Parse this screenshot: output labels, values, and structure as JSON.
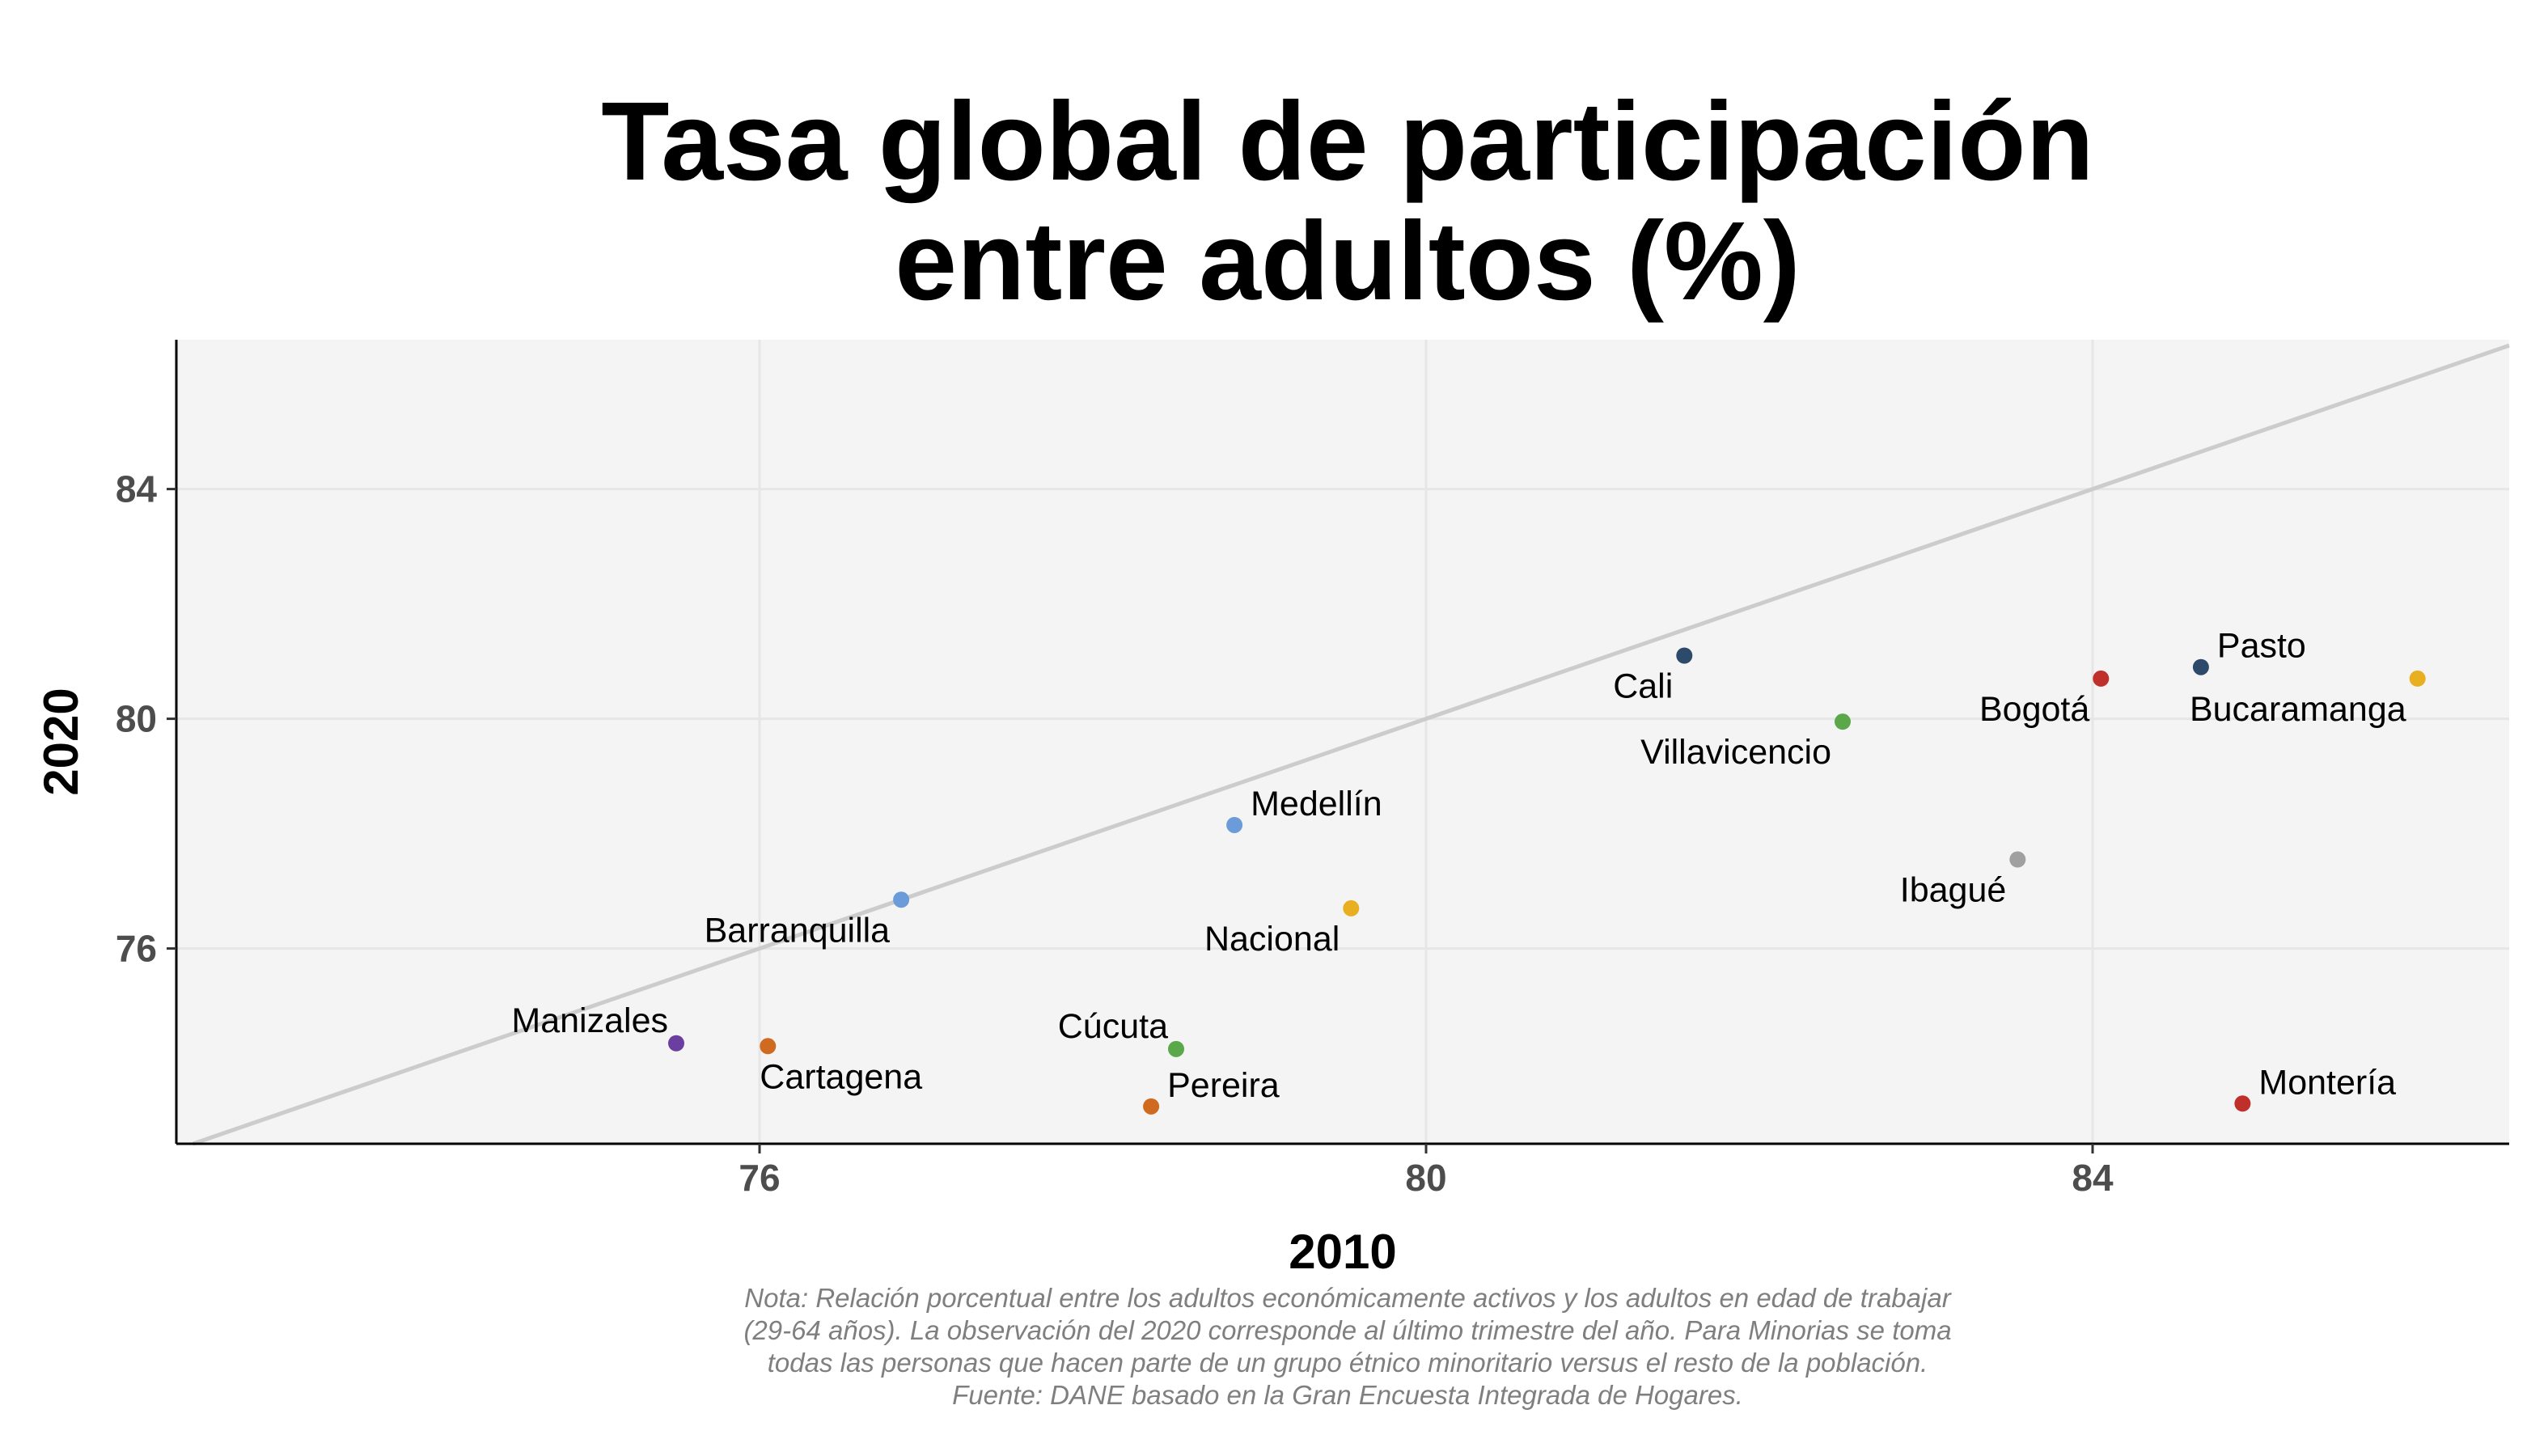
{
  "chart_data": {
    "type": "scatter",
    "title": [
      "Tasa global de participación",
      "entre adultos (%)"
    ],
    "xlabel": "2010",
    "ylabel": "2020",
    "xlim": [
      72.5,
      86.5
    ],
    "ylim": [
      72.6,
      86.6
    ],
    "xticks": [
      76,
      80,
      84
    ],
    "yticks": [
      76,
      80,
      84
    ],
    "grid": true,
    "reference_line": "y = x",
    "points": [
      {
        "label": "Pasto",
        "x": 84.65,
        "y": 80.9,
        "color": "#2e4a6b",
        "label_pos": "top-right"
      },
      {
        "label": "Bucaramanga",
        "x": 85.95,
        "y": 80.7,
        "color": "#e8b020",
        "label_pos": "bottom-left"
      },
      {
        "label": "Bogotá",
        "x": 84.05,
        "y": 80.7,
        "color": "#c0302a",
        "label_pos": "bottom-left"
      },
      {
        "label": "Cali",
        "x": 81.55,
        "y": 81.1,
        "color": "#2e4a6b",
        "label_pos": "bottom-left"
      },
      {
        "label": "Villavicencio",
        "x": 82.5,
        "y": 79.95,
        "color": "#5aa84a",
        "label_pos": "bottom-left"
      },
      {
        "label": "Ibagué",
        "x": 83.55,
        "y": 77.55,
        "color": "#a0a0a0",
        "label_pos": "bottom-left"
      },
      {
        "label": "Medellín",
        "x": 78.85,
        "y": 78.15,
        "color": "#6b9bd8",
        "label_pos": "top-right"
      },
      {
        "label": "Nacional",
        "x": 79.55,
        "y": 76.7,
        "color": "#e8b020",
        "label_pos": "bottom-left"
      },
      {
        "label": "Barranquilla",
        "x": 76.85,
        "y": 76.85,
        "color": "#6b9bd8",
        "label_pos": "bottom-left"
      },
      {
        "label": "Manizales",
        "x": 75.5,
        "y": 74.35,
        "color": "#6b3fa0",
        "label_pos": "top-left"
      },
      {
        "label": "Cartagena",
        "x": 76.05,
        "y": 74.3,
        "color": "#d06a20",
        "label_pos": "bottom-right"
      },
      {
        "label": "Cúcuta",
        "x": 78.5,
        "y": 74.25,
        "color": "#5aa84a",
        "label_pos": "top-left"
      },
      {
        "label": "Pereira",
        "x": 78.35,
        "y": 73.25,
        "color": "#d06a20",
        "label_pos": "top-right"
      },
      {
        "label": "Montería",
        "x": 84.9,
        "y": 73.3,
        "color": "#c0302a",
        "label_pos": "top-right"
      }
    ]
  },
  "note": [
    "Nota: Relación porcentual entre los adultos económicamente activos y los adultos en edad de trabajar",
    "(29-64 años). La observación del 2020 corresponde al último trimestre del año. Para Minorias se toma",
    "todas las personas que hacen parte de un grupo étnico minoritario versus el resto de la población.",
    "Fuente: DANE basado en la Gran Encuesta Integrada de Hogares."
  ]
}
